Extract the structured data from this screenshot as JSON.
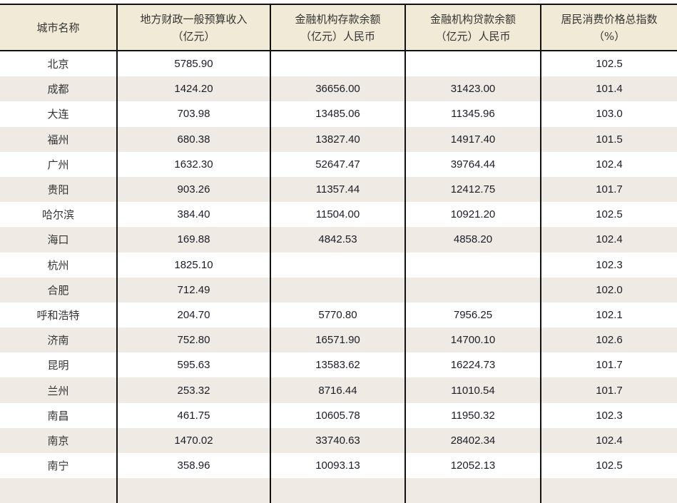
{
  "table": {
    "headers": [
      {
        "line1": "城市名称",
        "line2": ""
      },
      {
        "line1": "地方财政一般预算收入",
        "line2": "（亿元）"
      },
      {
        "line1": "金融机构存款余额",
        "line2": "（亿元）人民币"
      },
      {
        "line1": "金融机构贷款余额",
        "line2": "（亿元）人民币"
      },
      {
        "line1": "居民消费价格总指数",
        "line2": "（%）"
      }
    ],
    "rows": [
      {
        "city": "北京",
        "revenue": "5785.90",
        "deposits": "",
        "loans": "",
        "cpi": "102.5"
      },
      {
        "city": "成都",
        "revenue": "1424.20",
        "deposits": "36656.00",
        "loans": "31423.00",
        "cpi": "101.4"
      },
      {
        "city": "大连",
        "revenue": "703.98",
        "deposits": "13485.06",
        "loans": "11345.96",
        "cpi": "103.0"
      },
      {
        "city": "福州",
        "revenue": "680.38",
        "deposits": "13827.40",
        "loans": "14917.40",
        "cpi": "101.5"
      },
      {
        "city": "广州",
        "revenue": "1632.30",
        "deposits": "52647.47",
        "loans": "39764.44",
        "cpi": "102.4"
      },
      {
        "city": "贵阳",
        "revenue": "903.26",
        "deposits": "11357.44",
        "loans": "12412.75",
        "cpi": "101.7"
      },
      {
        "city": "哈尔滨",
        "revenue": "384.40",
        "deposits": "11504.00",
        "loans": "10921.20",
        "cpi": "102.5"
      },
      {
        "city": "海口",
        "revenue": "169.88",
        "deposits": "4842.53",
        "loans": "4858.20",
        "cpi": "102.4"
      },
      {
        "city": "杭州",
        "revenue": "1825.10",
        "deposits": "",
        "loans": "",
        "cpi": "102.3"
      },
      {
        "city": "合肥",
        "revenue": "712.49",
        "deposits": "",
        "loans": "",
        "cpi": "102.0"
      },
      {
        "city": "呼和浩特",
        "revenue": "204.70",
        "deposits": "5770.80",
        "loans": "7956.25",
        "cpi": "102.1"
      },
      {
        "city": "济南",
        "revenue": "752.80",
        "deposits": "16571.90",
        "loans": "14700.10",
        "cpi": "102.6"
      },
      {
        "city": "昆明",
        "revenue": "595.63",
        "deposits": "13583.62",
        "loans": "16224.73",
        "cpi": "101.7"
      },
      {
        "city": "兰州",
        "revenue": "253.32",
        "deposits": "8716.44",
        "loans": "11010.54",
        "cpi": "101.7"
      },
      {
        "city": "南昌",
        "revenue": "461.75",
        "deposits": "10605.78",
        "loans": "11950.32",
        "cpi": "102.3"
      },
      {
        "city": "南京",
        "revenue": "1470.02",
        "deposits": "33740.63",
        "loans": "28402.34",
        "cpi": "102.4"
      },
      {
        "city": "南宁",
        "revenue": "358.96",
        "deposits": "10093.13",
        "loans": "12052.13",
        "cpi": "102.5"
      },
      {
        "city": "",
        "revenue": "",
        "deposits": "",
        "loans": "",
        "cpi": ""
      }
    ]
  }
}
